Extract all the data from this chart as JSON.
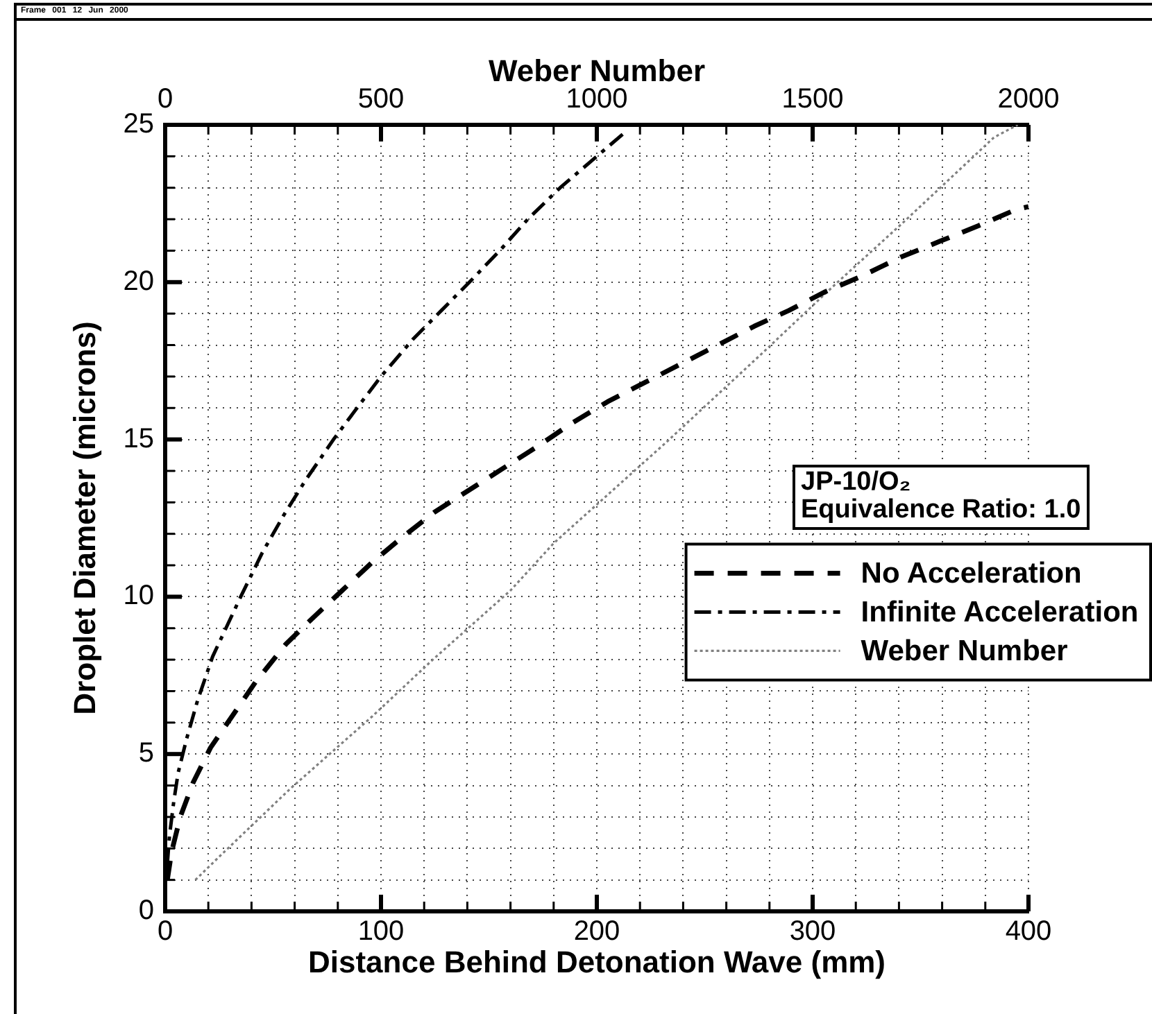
{
  "chart_data": {
    "type": "line",
    "xlabel": "Distance Behind Detonation Wave (mm)",
    "ylabel": "Droplet Diameter (microns)",
    "x2label": "Weber Number",
    "annotations": [
      "Frame 001 12 Jun 2000",
      "JP-10/O₂\nEquivalence Ratio: 1.0"
    ],
    "xlim": [
      0,
      400
    ],
    "xticks": [
      0,
      {
        "value": 20,
        "label": null
      },
      {
        "value": 40,
        "label": null
      },
      {
        "value": 60,
        "label": null
      },
      {
        "value": 80,
        "label": null
      },
      100,
      {
        "value": 120,
        "label": null
      },
      {
        "value": 140,
        "label": null
      },
      {
        "value": 160,
        "label": null
      },
      {
        "value": 180,
        "label": null
      },
      200,
      {
        "value": 220,
        "label": null
      },
      {
        "value": 240,
        "label": null
      },
      {
        "value": 260,
        "label": null
      },
      {
        "value": 280,
        "label": null
      },
      300,
      {
        "value": 320,
        "label": null
      },
      {
        "value": 340,
        "label": null
      },
      {
        "value": 360,
        "label": null
      },
      {
        "value": 380,
        "label": null
      },
      400
    ],
    "x2lim": [
      0,
      2000
    ],
    "x2ticks": [
      0,
      {
        "value": 100,
        "label": null
      },
      {
        "value": 200,
        "label": null
      },
      {
        "value": 300,
        "label": null
      },
      {
        "value": 400,
        "label": null
      },
      500,
      {
        "value": 600,
        "label": null
      },
      {
        "value": 700,
        "label": null
      },
      {
        "value": 800,
        "label": null
      },
      {
        "value": 900,
        "label": null
      },
      1000,
      {
        "value": 1100,
        "label": null
      },
      {
        "value": 1200,
        "label": null
      },
      {
        "value": 1300,
        "label": null
      },
      {
        "value": 1400,
        "label": null
      },
      1500,
      {
        "value": 1600,
        "label": null
      },
      {
        "value": 1700,
        "label": null
      },
      {
        "value": 1800,
        "label": null
      },
      {
        "value": 1900,
        "label": null
      },
      2000
    ],
    "ylim": [
      0,
      25
    ],
    "yticks": [
      0,
      {
        "value": 1,
        "label": null
      },
      {
        "value": 2,
        "label": null
      },
      {
        "value": 3,
        "label": null
      },
      {
        "value": 4,
        "label": null
      },
      5,
      {
        "value": 6,
        "label": null
      },
      {
        "value": 7,
        "label": null
      },
      {
        "value": 8,
        "label": null
      },
      {
        "value": 9,
        "label": null
      },
      10,
      {
        "value": 11,
        "label": null
      },
      {
        "value": 12,
        "label": null
      },
      {
        "value": 13,
        "label": null
      },
      {
        "value": 14,
        "label": null
      },
      15,
      {
        "value": 16,
        "label": null
      },
      {
        "value": 17,
        "label": null
      },
      {
        "value": 18,
        "label": null
      },
      {
        "value": 19,
        "label": null
      },
      20,
      {
        "value": 21,
        "label": null
      },
      {
        "value": 22,
        "label": null
      },
      {
        "value": 23,
        "label": null
      },
      {
        "value": 24,
        "label": null
      },
      25
    ],
    "grid": true,
    "legend": "right",
    "series": [
      {
        "name": "No Acceleration",
        "color": "#000000",
        "line_style": "dashed",
        "x": [
          1,
          3,
          7,
          13,
          21,
          32,
          42,
          56,
          68,
          82,
          96,
          110,
          125,
          141,
          157,
          173,
          188,
          205,
          222,
          239,
          256,
          273,
          289,
          306,
          323,
          341,
          359,
          377,
          394,
          400
        ],
        "values": [
          1.0,
          1.9,
          3.0,
          4.1,
          5.2,
          6.3,
          7.3,
          8.5,
          9.3,
          10.2,
          11.1,
          11.9,
          12.7,
          13.4,
          14.1,
          14.8,
          15.5,
          16.2,
          16.8,
          17.4,
          18.0,
          18.6,
          19.1,
          19.7,
          20.2,
          20.8,
          21.3,
          21.8,
          22.3,
          22.4
        ]
      },
      {
        "name": "Infinite Acceleration",
        "color": "#000000",
        "line_style": "dashed",
        "x": [
          1,
          2,
          4,
          6,
          10,
          15,
          22,
          35,
          45,
          55,
          65,
          78,
          90,
          100,
          115,
          128,
          141,
          155,
          168,
          183,
          200,
          212
        ],
        "values": [
          1.5,
          2.4,
          3.5,
          4.4,
          5.5,
          6.7,
          8.1,
          10.0,
          11.4,
          12.6,
          13.7,
          15.0,
          16.1,
          17.0,
          18.2,
          19.1,
          20.0,
          21.0,
          22.0,
          23.0,
          24.0,
          24.7
        ]
      },
      {
        "name": "Weber Number",
        "color": "#808080",
        "line_style": "dotted",
        "axis": "x2",
        "x": [
          70,
          130,
          290,
          480,
          620,
          800,
          900,
          1160,
          1380,
          1550,
          1710,
          1920,
          1975
        ],
        "values": [
          1.0,
          1.8,
          3.9,
          6.2,
          8.0,
          10.2,
          11.7,
          14.9,
          17.7,
          19.9,
          21.9,
          24.6,
          25.0
        ]
      }
    ]
  }
}
